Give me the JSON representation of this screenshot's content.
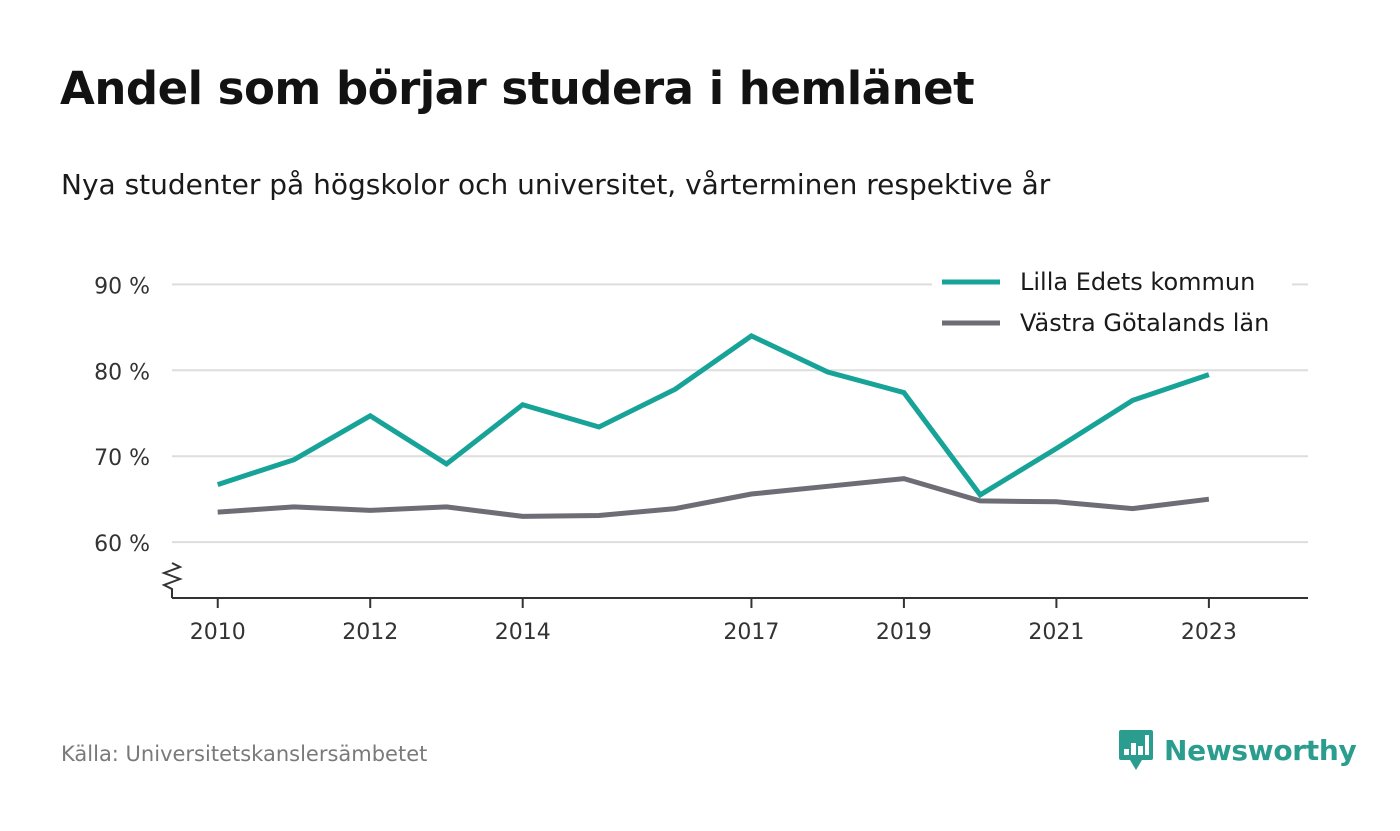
{
  "title": "Andel som börjar studera i hemlänet",
  "subtitle": "Nya studenter på högskolor och universitet, vårterminen respektive år",
  "source": "Källa: Universitetskanslersämbetet",
  "brand": {
    "name": "Newsworthy",
    "icon": "newsworthy-logo-icon",
    "color": "#2a9d8f"
  },
  "colors": {
    "grid": "#dddddd",
    "axis": "#333333",
    "tick_text": "#333333"
  },
  "chart_data": {
    "type": "line",
    "title": "Andel som börjar studera i hemlänet",
    "subtitle": "Nya studenter på högskolor och universitet, vårterminen respektive år",
    "x": [
      2010,
      2011,
      2012,
      2013,
      2014,
      2015,
      2016,
      2017,
      2018,
      2019,
      2020,
      2021,
      2022,
      2023
    ],
    "x_ticks": [
      2010,
      2012,
      2014,
      2017,
      2019,
      2021,
      2023
    ],
    "y_ticks": [
      60,
      70,
      80,
      90
    ],
    "y_tick_labels": [
      "60 %",
      "70 %",
      "80 %",
      "90 %"
    ],
    "xlim": [
      2009.4,
      2024.3
    ],
    "ylim": [
      53.5,
      94
    ],
    "y_axis_break": true,
    "grid": true,
    "legend_position": "top-right",
    "series": [
      {
        "name": "Lilla Edets kommun",
        "color": "#17a398",
        "values": [
          66.7,
          69.6,
          74.7,
          69.1,
          76.0,
          73.4,
          77.8,
          84.0,
          79.8,
          77.4,
          65.5,
          70.9,
          76.5,
          79.5
        ]
      },
      {
        "name": "Västra Götalands län",
        "color": "#6e6d76",
        "values": [
          63.5,
          64.1,
          63.7,
          64.1,
          63.0,
          63.1,
          63.9,
          65.6,
          66.5,
          67.4,
          64.8,
          64.7,
          63.9,
          65.0
        ]
      }
    ]
  }
}
